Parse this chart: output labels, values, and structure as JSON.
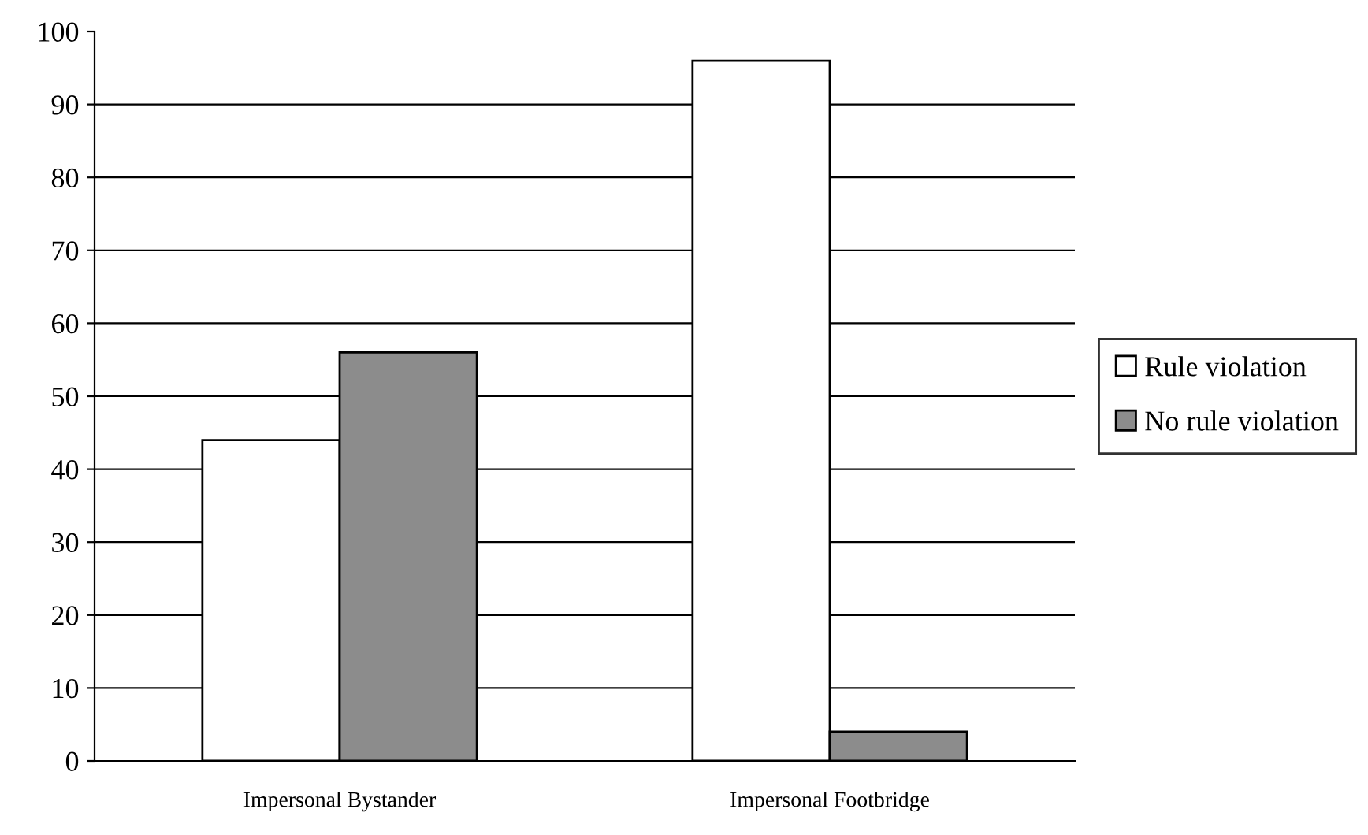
{
  "chart_data": {
    "type": "bar",
    "categories": [
      "Impersonal Bystander",
      "Impersonal Footbridge"
    ],
    "series": [
      {
        "name": "Rule violation",
        "color": "#ffffff",
        "values": [
          44,
          96
        ]
      },
      {
        "name": "No rule violation",
        "color": "#8c8c8c",
        "values": [
          56,
          4
        ]
      }
    ],
    "ylim": [
      0,
      100
    ],
    "yticks": [
      0,
      10,
      20,
      30,
      40,
      50,
      60,
      70,
      80,
      90,
      100
    ],
    "grid": "y",
    "legend": "right"
  }
}
